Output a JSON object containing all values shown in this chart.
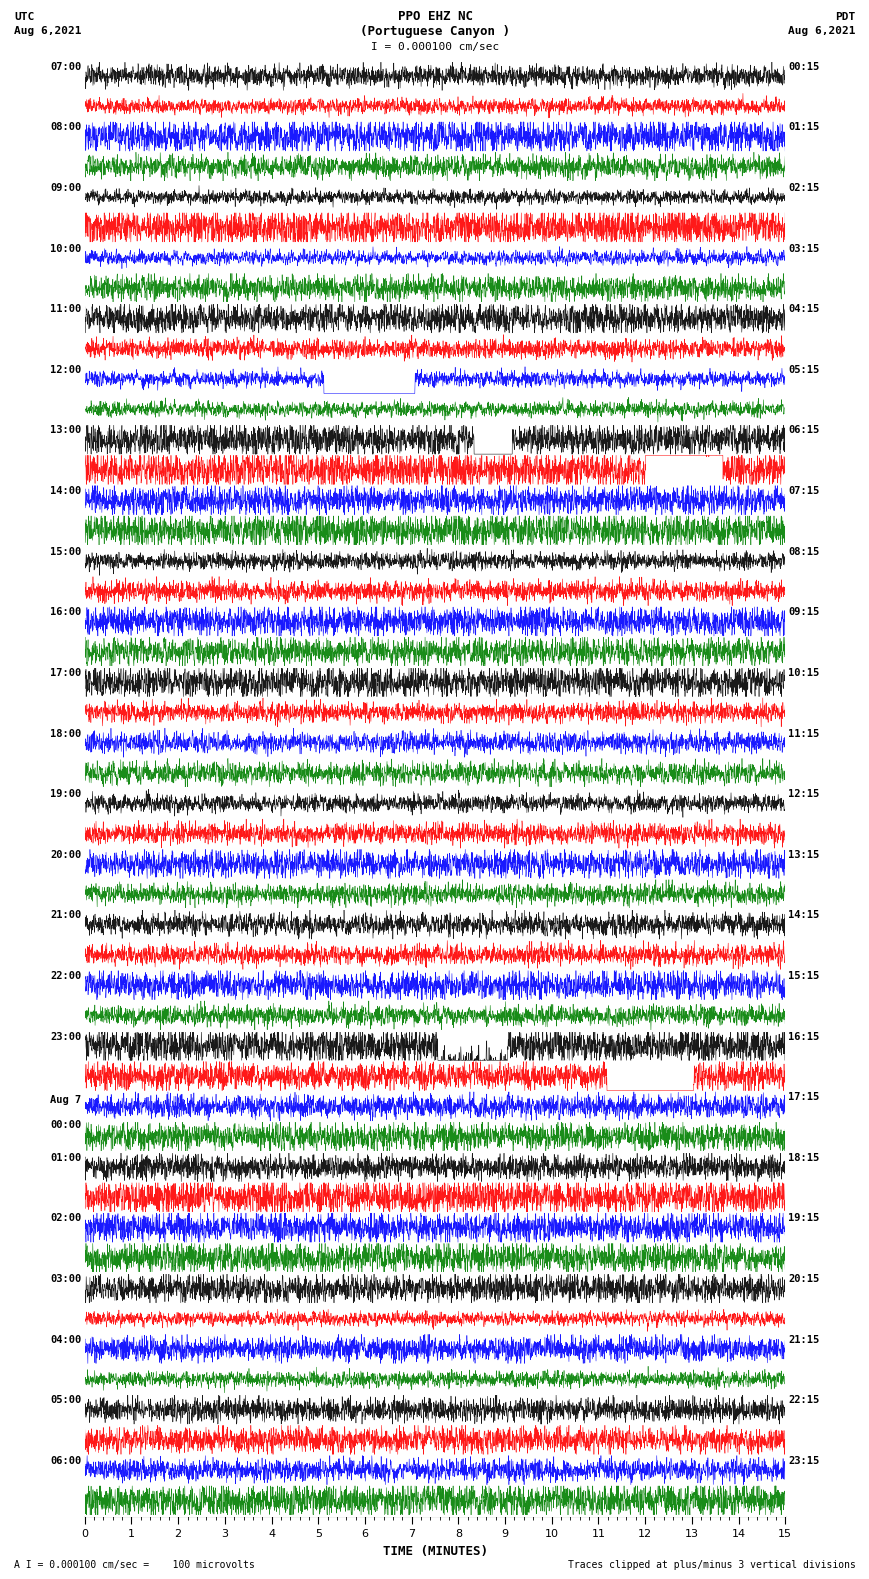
{
  "title_line1": "PPO EHZ NC",
  "title_line2": "(Portuguese Canyon )",
  "scale_label": "I = 0.000100 cm/sec",
  "utc_label_1": "UTC",
  "utc_label_2": "Aug 6,2021",
  "pdt_label_1": "PDT",
  "pdt_label_2": "Aug 6,2021",
  "bottom_left": "A I = 0.000100 cm/sec =    100 microvolts",
  "bottom_right": "Traces clipped at plus/minus 3 vertical divisions",
  "xlabel": "TIME (MINUTES)",
  "left_times": [
    "07:00",
    "08:00",
    "09:00",
    "10:00",
    "11:00",
    "12:00",
    "13:00",
    "14:00",
    "15:00",
    "16:00",
    "17:00",
    "18:00",
    "19:00",
    "20:00",
    "21:00",
    "22:00",
    "23:00",
    "Aug 7\n00:00",
    "01:00",
    "02:00",
    "03:00",
    "04:00",
    "05:00",
    "06:00"
  ],
  "right_times": [
    "00:15",
    "01:15",
    "02:15",
    "03:15",
    "04:15",
    "05:15",
    "06:15",
    "07:15",
    "08:15",
    "09:15",
    "10:15",
    "11:15",
    "12:15",
    "13:15",
    "14:15",
    "15:15",
    "16:15",
    "17:15",
    "18:15",
    "19:15",
    "20:15",
    "21:15",
    "22:15",
    "23:15"
  ],
  "n_rows": 48,
  "row_colors": [
    "black",
    "red",
    "blue",
    "green"
  ],
  "bg_color": "white",
  "fig_bg": "white",
  "xlim": [
    0,
    15
  ],
  "seed": 42
}
